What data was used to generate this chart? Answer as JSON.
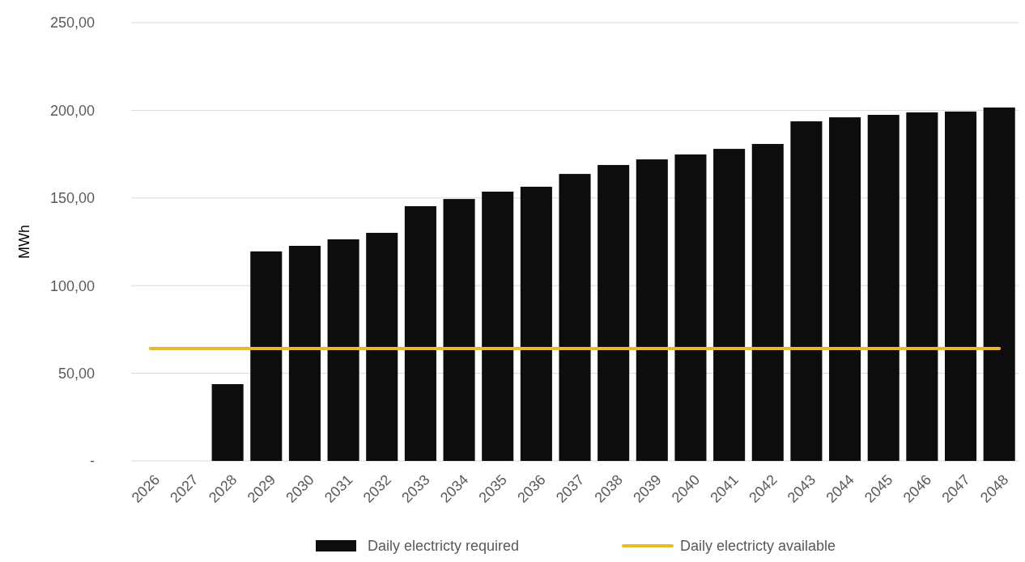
{
  "chart_data": {
    "type": "bar",
    "ylabel": "MWh",
    "categories": [
      "2026",
      "2027",
      "2028",
      "2029",
      "2030",
      "2031",
      "2032",
      "2033",
      "2034",
      "2035",
      "2036",
      "2037",
      "2038",
      "2039",
      "2040",
      "2041",
      "2042",
      "2043",
      "2044",
      "2045",
      "2046",
      "2047",
      "2048"
    ],
    "series": [
      {
        "name": "Daily electricty required",
        "color": "#0d0d0d",
        "values": [
          0,
          0,
          43.8,
          119.5,
          122.7,
          126.4,
          130.1,
          145.3,
          149.4,
          153.6,
          156.4,
          163.7,
          168.8,
          172.0,
          174.8,
          178.0,
          180.8,
          193.7,
          196.0,
          197.4,
          198.8,
          199.3,
          201.6
        ]
      },
      {
        "name": "Daily electricty available",
        "type": "line",
        "color": "#e8b92a",
        "values": [
          64.1,
          64.1,
          64.1,
          64.1,
          64.1,
          64.1,
          64.1,
          64.1,
          64.1,
          64.1,
          64.1,
          64.1,
          64.1,
          64.1,
          64.1,
          64.1,
          64.1,
          64.1,
          64.1,
          64.1,
          64.1,
          64.1,
          64.1
        ]
      }
    ],
    "ylim": [
      0,
      250
    ],
    "yticks": [
      {
        "value": 0,
        "label": "-"
      },
      {
        "value": 50,
        "label": "50,00"
      },
      {
        "value": 100,
        "label": "100,00"
      },
      {
        "value": 150,
        "label": "150,00"
      },
      {
        "value": 200,
        "label": "200,00"
      },
      {
        "value": 250,
        "label": "250,00"
      }
    ],
    "grid": "y",
    "legend": "bottom"
  }
}
